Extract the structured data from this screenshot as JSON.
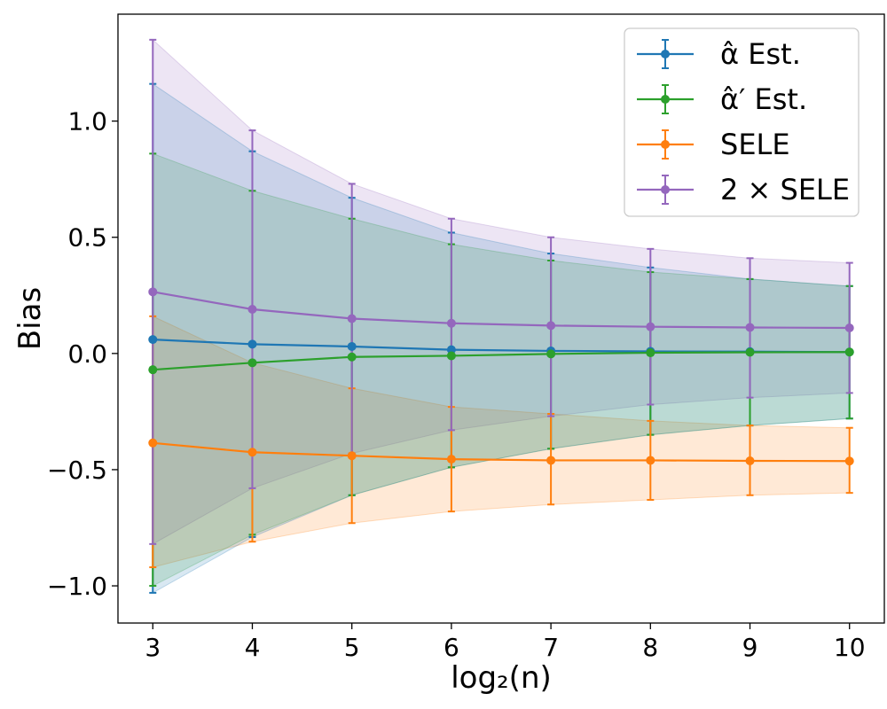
{
  "chart_data": {
    "type": "line",
    "title": "",
    "xlabel": "log₂(n)",
    "ylabel": "Bias",
    "xlim": [
      2.65,
      10.35
    ],
    "ylim": [
      -1.16,
      1.46
    ],
    "x_ticks": [
      3,
      4,
      5,
      6,
      7,
      8,
      9,
      10
    ],
    "y_ticks": [
      -1.0,
      -0.5,
      0.0,
      0.5,
      1.0
    ],
    "y_tick_labels": [
      "−1.0",
      "−0.5",
      "0.0",
      "0.5",
      "1.0"
    ],
    "x": [
      3,
      4,
      5,
      6,
      7,
      8,
      9,
      10
    ],
    "legend_position": "top-right",
    "series": [
      {
        "name": "α̂ Est.",
        "legend_label": "α̂ Est.",
        "color": "#1f77b4",
        "values": [
          0.06,
          0.04,
          0.03,
          0.016,
          0.011,
          0.009,
          0.008,
          0.006
        ],
        "lower": [
          -1.03,
          -0.79,
          -0.61,
          -0.49,
          -0.41,
          -0.35,
          -0.31,
          -0.28
        ],
        "upper": [
          1.16,
          0.87,
          0.67,
          0.52,
          0.43,
          0.37,
          0.32,
          0.29
        ]
      },
      {
        "name": "α̂′ Est.",
        "legend_label": "α̂′ Est.",
        "color": "#2ca02c",
        "values": [
          -0.07,
          -0.04,
          -0.015,
          -0.01,
          -0.002,
          0.003,
          0.005,
          0.006
        ],
        "lower": [
          -1.0,
          -0.78,
          -0.61,
          -0.49,
          -0.41,
          -0.35,
          -0.31,
          -0.28
        ],
        "upper": [
          0.86,
          0.7,
          0.58,
          0.47,
          0.4,
          0.35,
          0.32,
          0.29
        ]
      },
      {
        "name": "SELE",
        "legend_label": "SELE",
        "color": "#ff7f0e",
        "values": [
          -0.385,
          -0.425,
          -0.44,
          -0.455,
          -0.46,
          -0.46,
          -0.462,
          -0.463
        ],
        "lower": [
          -0.92,
          -0.81,
          -0.73,
          -0.68,
          -0.65,
          -0.63,
          -0.61,
          -0.6
        ],
        "upper": [
          0.16,
          -0.04,
          -0.15,
          -0.23,
          -0.26,
          -0.29,
          -0.31,
          -0.32
        ]
      },
      {
        "name": "2×SELE",
        "legend_label": "2 × SELE",
        "color": "#9467bd",
        "values": [
          0.265,
          0.19,
          0.15,
          0.13,
          0.12,
          0.115,
          0.112,
          0.11
        ],
        "lower": [
          -0.82,
          -0.58,
          -0.43,
          -0.33,
          -0.27,
          -0.22,
          -0.19,
          -0.17
        ],
        "upper": [
          1.35,
          0.96,
          0.73,
          0.58,
          0.5,
          0.45,
          0.41,
          0.39
        ]
      }
    ]
  }
}
